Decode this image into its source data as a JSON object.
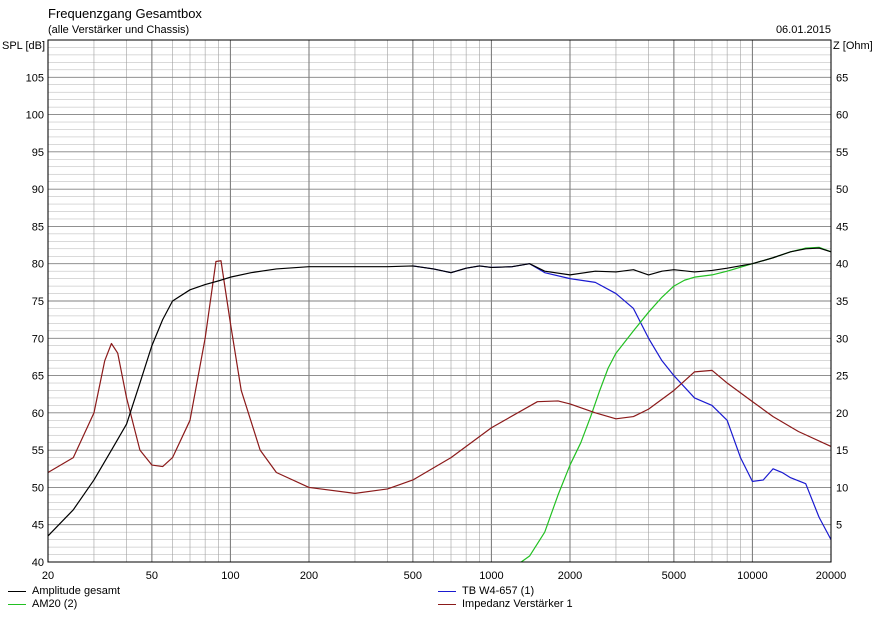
{
  "header": {
    "title": "Frequenzgang Gesamtbox",
    "subtitle": "(alle Verstärker und Chassis)",
    "date": "06.01.2015"
  },
  "colors": {
    "background": "#ffffff",
    "grid": "#a0a0a0",
    "amplitude": "#000000",
    "am20": "#22c022",
    "tbw4": "#1a1ad0",
    "impedance": "#8b1a1a"
  },
  "chart_data": {
    "type": "line",
    "xscale": "log",
    "xlim": [
      20,
      20000
    ],
    "ylim": [
      40,
      110
    ],
    "y2lim": [
      0,
      70
    ],
    "grid": true,
    "legend_position": "bottom",
    "ylabel": "SPL [dB]",
    "y2label": "Z [Ohm]",
    "x_ticks": [
      20,
      50,
      100,
      200,
      500,
      1000,
      2000,
      5000,
      10000,
      20000
    ],
    "x_tick_labels": [
      "20",
      "50",
      "100",
      "200",
      "500",
      "1000",
      "2000",
      "5000",
      "10000",
      "20000"
    ],
    "y_ticks": [
      45,
      50,
      55,
      60,
      65,
      70,
      75,
      80,
      85,
      90,
      95,
      100,
      105
    ],
    "y_tick_labels": [
      "45",
      "50",
      "55",
      "60",
      "65",
      "70",
      "75",
      "80",
      "85",
      "90",
      "95",
      "100",
      "105"
    ],
    "y2_ticks": [
      5,
      10,
      15,
      20,
      25,
      30,
      35,
      40,
      45,
      50,
      55,
      60,
      65
    ],
    "y2_tick_labels": [
      "5",
      "10",
      "15",
      "20",
      "25",
      "30",
      "35",
      "40",
      "45",
      "50",
      "55",
      "60",
      "65"
    ],
    "series": [
      {
        "name": "Amplitude gesamt",
        "axis": "left",
        "points": [
          [
            20,
            43.5
          ],
          [
            25,
            47
          ],
          [
            30,
            51
          ],
          [
            35,
            55
          ],
          [
            40,
            58.5
          ],
          [
            45,
            64
          ],
          [
            50,
            69
          ],
          [
            55,
            72.5
          ],
          [
            60,
            75
          ],
          [
            70,
            76.5
          ],
          [
            80,
            77.2
          ],
          [
            90,
            77.7
          ],
          [
            100,
            78.2
          ],
          [
            120,
            78.8
          ],
          [
            150,
            79.3
          ],
          [
            200,
            79.6
          ],
          [
            300,
            79.6
          ],
          [
            400,
            79.6
          ],
          [
            500,
            79.7
          ],
          [
            600,
            79.3
          ],
          [
            700,
            78.8
          ],
          [
            800,
            79.4
          ],
          [
            900,
            79.7
          ],
          [
            1000,
            79.5
          ],
          [
            1200,
            79.6
          ],
          [
            1400,
            80
          ],
          [
            1600,
            79
          ],
          [
            2000,
            78.5
          ],
          [
            2500,
            79
          ],
          [
            3000,
            78.9
          ],
          [
            3500,
            79.2
          ],
          [
            4000,
            78.5
          ],
          [
            4500,
            79
          ],
          [
            5000,
            79.2
          ],
          [
            6000,
            78.9
          ],
          [
            7000,
            79.1
          ],
          [
            8000,
            79.4
          ],
          [
            10000,
            80
          ],
          [
            12000,
            80.8
          ],
          [
            14000,
            81.6
          ],
          [
            16000,
            82
          ],
          [
            18000,
            82.1
          ],
          [
            20000,
            81.6
          ]
        ]
      },
      {
        "name": "AM20 (2)",
        "axis": "left",
        "points": [
          [
            1300,
            40
          ],
          [
            1400,
            40.8
          ],
          [
            1600,
            44
          ],
          [
            1800,
            49
          ],
          [
            2000,
            53
          ],
          [
            2200,
            56
          ],
          [
            2400,
            59.5
          ],
          [
            2600,
            63
          ],
          [
            2800,
            66
          ],
          [
            3000,
            68
          ],
          [
            3500,
            71
          ],
          [
            4000,
            73.5
          ],
          [
            4500,
            75.5
          ],
          [
            5000,
            77
          ],
          [
            5500,
            77.8
          ],
          [
            6000,
            78.2
          ],
          [
            7000,
            78.5
          ],
          [
            8000,
            79
          ],
          [
            10000,
            80
          ],
          [
            12000,
            80.8
          ],
          [
            14000,
            81.6
          ],
          [
            16000,
            82.1
          ],
          [
            18000,
            82.2
          ],
          [
            20000,
            81.6
          ]
        ]
      },
      {
        "name": "TB W4-657 (1)",
        "axis": "left",
        "points": [
          [
            500,
            79.7
          ],
          [
            600,
            79.3
          ],
          [
            700,
            78.8
          ],
          [
            800,
            79.4
          ],
          [
            900,
            79.7
          ],
          [
            1000,
            79.5
          ],
          [
            1200,
            79.6
          ],
          [
            1400,
            80
          ],
          [
            1600,
            78.8
          ],
          [
            2000,
            78
          ],
          [
            2500,
            77.5
          ],
          [
            3000,
            76
          ],
          [
            3500,
            74
          ],
          [
            4000,
            70
          ],
          [
            4500,
            67
          ],
          [
            5000,
            65
          ],
          [
            6000,
            62
          ],
          [
            7000,
            61
          ],
          [
            8000,
            59
          ],
          [
            9000,
            54
          ],
          [
            10000,
            50.8
          ],
          [
            11000,
            51
          ],
          [
            12000,
            52.5
          ],
          [
            13000,
            52
          ],
          [
            14000,
            51.3
          ],
          [
            16000,
            50.5
          ],
          [
            18000,
            46
          ],
          [
            20000,
            43
          ]
        ]
      },
      {
        "name": "Impedanz Verstärker 1",
        "axis": "right",
        "points": [
          [
            20,
            12
          ],
          [
            25,
            14
          ],
          [
            30,
            20
          ],
          [
            33,
            27
          ],
          [
            35,
            29.3
          ],
          [
            37,
            28
          ],
          [
            40,
            22
          ],
          [
            45,
            15
          ],
          [
            50,
            13
          ],
          [
            55,
            12.8
          ],
          [
            60,
            14
          ],
          [
            70,
            19
          ],
          [
            80,
            30
          ],
          [
            88,
            40.3
          ],
          [
            92,
            40.4
          ],
          [
            100,
            32
          ],
          [
            110,
            23
          ],
          [
            130,
            15
          ],
          [
            150,
            12
          ],
          [
            200,
            10
          ],
          [
            300,
            9.2
          ],
          [
            400,
            9.8
          ],
          [
            500,
            11
          ],
          [
            700,
            14
          ],
          [
            1000,
            18
          ],
          [
            1500,
            21.5
          ],
          [
            1800,
            21.6
          ],
          [
            2000,
            21.2
          ],
          [
            2500,
            20
          ],
          [
            3000,
            19.2
          ],
          [
            3500,
            19.5
          ],
          [
            4000,
            20.5
          ],
          [
            5000,
            23
          ],
          [
            6000,
            25.5
          ],
          [
            7000,
            25.7
          ],
          [
            8000,
            24
          ],
          [
            10000,
            21.5
          ],
          [
            12000,
            19.5
          ],
          [
            15000,
            17.5
          ],
          [
            20000,
            15.5
          ]
        ]
      }
    ]
  },
  "legend": [
    {
      "label": "Amplitude gesamt",
      "color": "#000000"
    },
    {
      "label": "AM20 (2)",
      "color": "#22c022"
    },
    {
      "label": "TB W4-657 (1)",
      "color": "#1a1ad0"
    },
    {
      "label": "Impedanz Verstärker 1",
      "color": "#8b1a1a"
    }
  ]
}
